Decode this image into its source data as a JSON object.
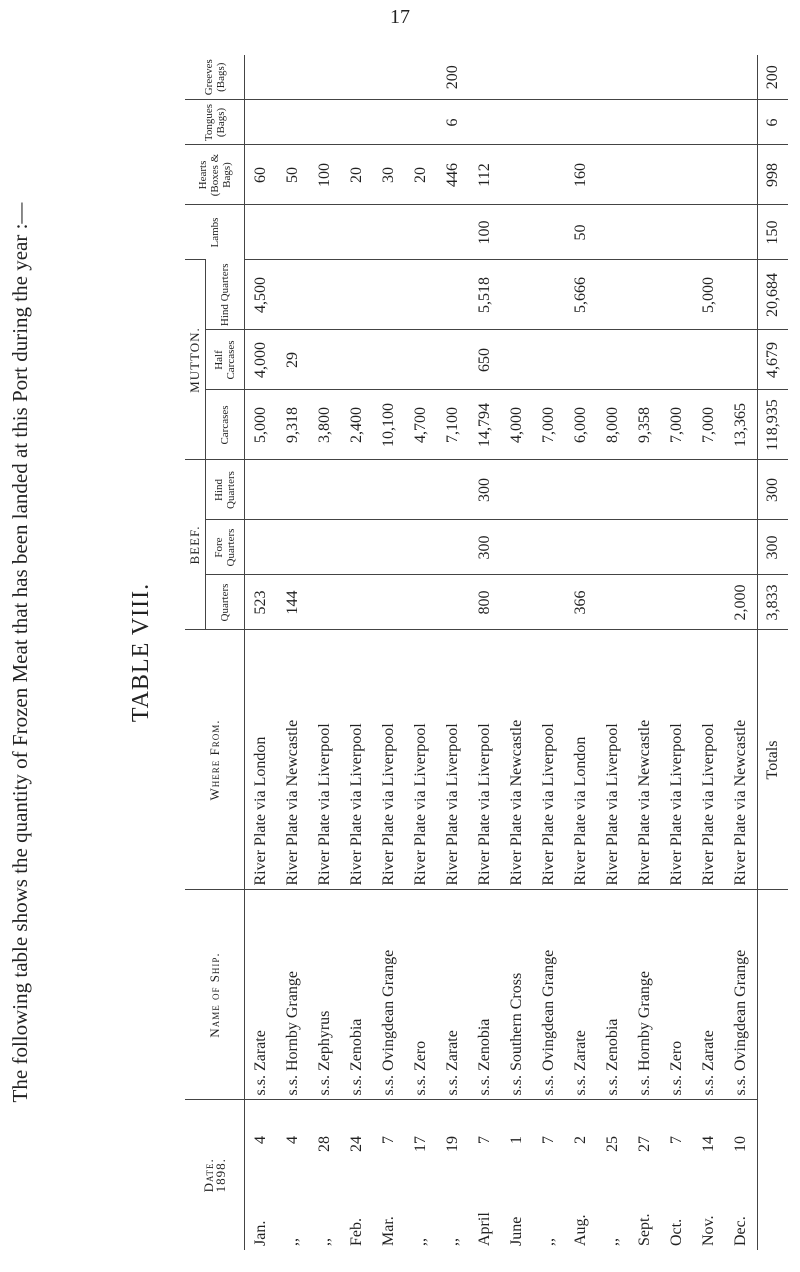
{
  "header": {
    "page_number": "17",
    "intro": "The following table shows the quantity of Frozen Meat that has been landed at this Port during the year :—",
    "table_title": "TABLE VIII."
  },
  "table": {
    "date_header": {
      "label": "Date.",
      "year": "1898."
    },
    "ship_header": "Name of Ship.",
    "from_header": "Where From.",
    "beef_header": "BEEF.",
    "beef_columns": [
      "Quarters",
      "Fore Quarters",
      "Hind Quarters"
    ],
    "mutton_header": "MUTTON.",
    "mutton_columns": [
      "Carcases",
      "Half Carcases",
      "Hind Quarters"
    ],
    "other_columns": [
      "Lambs",
      "Hearts (Boxes & Bags)",
      "Tongues (Bags)",
      "Greeves (Bags)"
    ],
    "rows": [
      [
        "Jan.",
        "4",
        "s.s. Zarate",
        "River Plate via London",
        "523",
        null,
        null,
        "5,000",
        "4,000",
        "4,500",
        null,
        "60",
        null,
        null
      ],
      [
        ",,",
        "4",
        "s.s. Hornby Grange",
        "River Plate via Newcastle",
        "144",
        null,
        null,
        "9,318",
        "29",
        null,
        null,
        "50",
        null,
        null
      ],
      [
        ",,",
        "28",
        "s.s. Zephyrus",
        "River Plate via Liverpool",
        null,
        null,
        null,
        "3,800",
        null,
        null,
        null,
        "100",
        null,
        null
      ],
      [
        "Feb.",
        "24",
        "s.s. Zenobia",
        "River Plate via Liverpool",
        null,
        null,
        null,
        "2,400",
        null,
        null,
        null,
        "20",
        null,
        null
      ],
      [
        "Mar.",
        "7",
        "s.s. Ovingdean Grange",
        "River Plate via Liverpool",
        null,
        null,
        null,
        "10,100",
        null,
        null,
        null,
        "30",
        null,
        null
      ],
      [
        ",,",
        "17",
        "s.s. Zero",
        "River Plate via Liverpool",
        null,
        null,
        null,
        "4,700",
        null,
        null,
        null,
        "20",
        null,
        null
      ],
      [
        ",,",
        "19",
        "s.s. Zarate",
        "River Plate via Liverpool",
        null,
        null,
        null,
        "7,100",
        null,
        null,
        null,
        "446",
        "6",
        "200"
      ],
      [
        "April",
        "7",
        "s.s. Zenobia",
        "River Plate via Liverpool",
        "800",
        "300",
        "300",
        "14,794",
        "650",
        "5,518",
        "100",
        "112",
        null,
        null
      ],
      [
        "June",
        "1",
        "s.s. Southern Cross",
        "River Plate via Newcastle",
        null,
        null,
        null,
        "4,000",
        null,
        null,
        null,
        null,
        null,
        null
      ],
      [
        ",,",
        "7",
        "s.s. Ovingdean Grange",
        "River Plate via Liverpool",
        null,
        null,
        null,
        "7,000",
        null,
        null,
        null,
        null,
        null,
        null
      ],
      [
        "Aug.",
        "2",
        "s.s. Zarate",
        "River Plate via London",
        "366",
        null,
        null,
        "6,000",
        null,
        "5,666",
        "50",
        "160",
        null,
        null
      ],
      [
        ",,",
        "25",
        "s.s. Zenobia",
        "River Plate via Liverpool",
        null,
        null,
        null,
        "8,000",
        null,
        null,
        null,
        null,
        null,
        null
      ],
      [
        "Sept.",
        "27",
        "s.s. Hornby Grange",
        "River Plate via Newcastle",
        null,
        null,
        null,
        "9,358",
        null,
        null,
        null,
        null,
        null,
        null
      ],
      [
        "Oct.",
        "7",
        "s.s. Zero",
        "River Plate via Liverpool",
        null,
        null,
        null,
        "7,000",
        null,
        null,
        null,
        null,
        null,
        null
      ],
      [
        "Nov.",
        "14",
        "s.s. Zarate",
        "River Plate via Liverpool",
        null,
        null,
        null,
        "7,000",
        null,
        "5,000",
        null,
        null,
        null,
        null
      ],
      [
        "Dec.",
        "10",
        "s.s. Ovingdean Grange",
        "River Plate via Newcastle",
        "2,000",
        null,
        null,
        "13,365",
        null,
        null,
        null,
        null,
        null,
        null
      ]
    ],
    "totals_label": "Totals",
    "totals": [
      "3,833",
      "300",
      "300",
      "118,935",
      "4,679",
      "20,684",
      "150",
      "998",
      "6",
      "200"
    ]
  }
}
